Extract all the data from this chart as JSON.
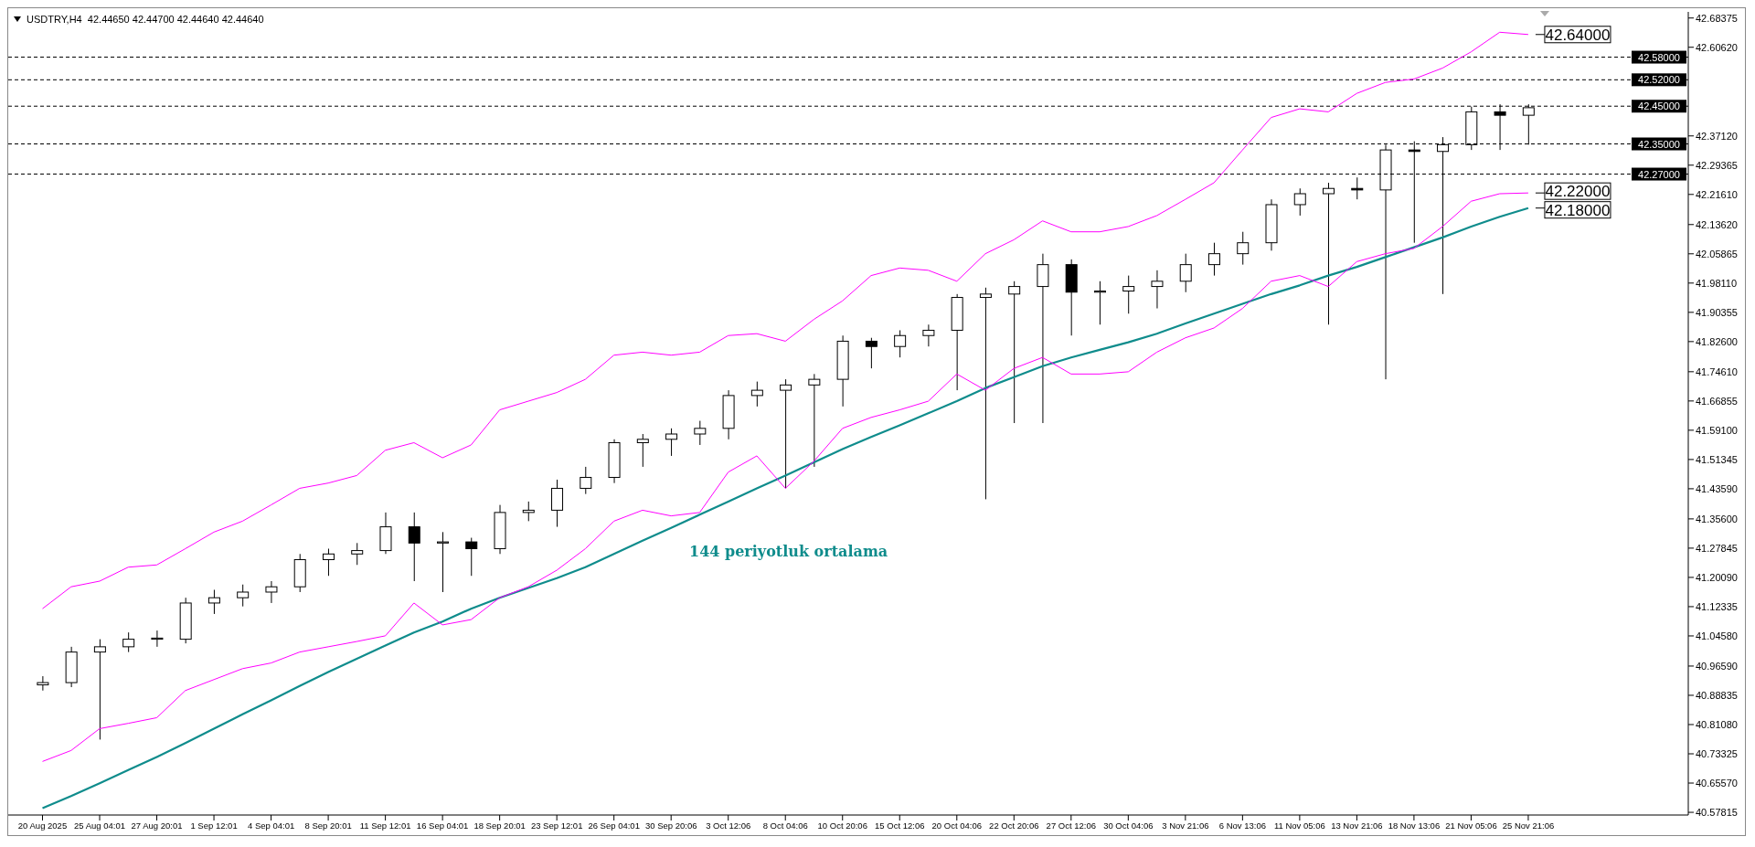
{
  "chart_data": {
    "type": "candlestick",
    "title": "USDTRY,H4  42.44650 42.44700 42.44640 42.44640",
    "categories": [
      "20 Aug 2025",
      null,
      "25 Aug 04:01",
      null,
      "27 Aug 20:01",
      null,
      "1 Sep 12:01",
      null,
      "4 Sep 04:01",
      null,
      "8 Sep 20:01",
      null,
      "11 Sep 12:01",
      null,
      "16 Sep 04:01",
      null,
      "18 Sep 20:01",
      null,
      "23 Sep 12:01",
      null,
      "26 Sep 04:01",
      null,
      "30 Sep 20:06",
      null,
      "3 Oct 12:06",
      null,
      "8 Oct 04:06",
      null,
      "10 Oct 20:06",
      null,
      "15 Oct 12:06",
      null,
      "20 Oct 04:06",
      null,
      "22 Oct 20:06",
      null,
      "27 Oct 12:06",
      null,
      "30 Oct 04:06",
      null,
      "3 Nov 21:06",
      null,
      "6 Nov 13:06",
      null,
      "11 Nov 05:06",
      null,
      "13 Nov 21:06",
      null,
      "18 Nov 13:06",
      null,
      "21 Nov 05:06",
      null,
      "25 Nov 21:06"
    ],
    "ohlc": [
      [
        40.916,
        40.939,
        40.901,
        40.922
      ],
      [
        40.922,
        41.017,
        40.91,
        41.003
      ],
      [
        41.003,
        41.037,
        40.771,
        41.017
      ],
      [
        41.017,
        41.055,
        41.003,
        41.037
      ],
      [
        41.037,
        41.06,
        41.017,
        41.04
      ],
      [
        41.037,
        41.147,
        41.026,
        41.133
      ],
      [
        41.133,
        41.168,
        41.104,
        41.147
      ],
      [
        41.147,
        41.182,
        41.124,
        41.162
      ],
      [
        41.162,
        41.191,
        41.133,
        41.176
      ],
      [
        41.176,
        41.263,
        41.162,
        41.248
      ],
      [
        41.248,
        41.277,
        41.205,
        41.263
      ],
      [
        41.263,
        41.292,
        41.234,
        41.272
      ],
      [
        41.272,
        41.373,
        41.263,
        41.335
      ],
      [
        41.335,
        41.373,
        41.191,
        41.292
      ],
      [
        41.292,
        41.321,
        41.162,
        41.295
      ],
      [
        41.295,
        41.306,
        41.205,
        41.277
      ],
      [
        41.277,
        41.393,
        41.263,
        41.373
      ],
      [
        41.373,
        41.402,
        41.35,
        41.379
      ],
      [
        41.379,
        41.46,
        41.335,
        41.437
      ],
      [
        41.437,
        41.494,
        41.422,
        41.466
      ],
      [
        41.466,
        41.567,
        41.451,
        41.558
      ],
      [
        41.558,
        41.581,
        41.494,
        41.567
      ],
      [
        41.567,
        41.596,
        41.523,
        41.581
      ],
      [
        41.581,
        41.616,
        41.552,
        41.596
      ],
      [
        41.596,
        41.697,
        41.567,
        41.683
      ],
      [
        41.683,
        41.72,
        41.654,
        41.697
      ],
      [
        41.697,
        41.726,
        41.437,
        41.711
      ],
      [
        41.711,
        41.74,
        41.494,
        41.726
      ],
      [
        41.726,
        41.842,
        41.654,
        41.827
      ],
      [
        41.827,
        41.836,
        41.755,
        41.813
      ],
      [
        41.813,
        41.856,
        41.784,
        41.842
      ],
      [
        41.842,
        41.871,
        41.813,
        41.856
      ],
      [
        41.856,
        41.952,
        41.697,
        41.943
      ],
      [
        41.943,
        41.969,
        41.408,
        41.952
      ],
      [
        41.952,
        41.986,
        41.61,
        41.972
      ],
      [
        41.972,
        42.059,
        41.61,
        42.03
      ],
      [
        42.03,
        42.044,
        41.842,
        41.957
      ],
      [
        41.957,
        41.986,
        41.871,
        41.96
      ],
      [
        41.96,
        42.001,
        41.9,
        41.972
      ],
      [
        41.972,
        42.015,
        41.914,
        41.986
      ],
      [
        41.986,
        42.059,
        41.957,
        42.03
      ],
      [
        42.03,
        42.088,
        42.001,
        42.059
      ],
      [
        42.059,
        42.117,
        42.03,
        42.088
      ],
      [
        42.088,
        42.203,
        42.067,
        42.189
      ],
      [
        42.189,
        42.232,
        42.16,
        42.218
      ],
      [
        42.218,
        42.247,
        41.871,
        42.232
      ],
      [
        42.232,
        42.261,
        42.203,
        42.228
      ],
      [
        42.228,
        42.348,
        41.726,
        42.334
      ],
      [
        42.334,
        42.357,
        42.088,
        42.33
      ],
      [
        42.33,
        42.368,
        41.952,
        42.348
      ],
      [
        42.348,
        42.449,
        42.334,
        42.435
      ],
      [
        42.435,
        42.455,
        42.334,
        42.426
      ],
      [
        42.426,
        42.455,
        42.348,
        42.446
      ]
    ],
    "series": [
      {
        "type": "line",
        "color": "#ff00ff",
        "values": [
          41.118,
          41.176,
          41.191,
          41.228,
          41.234,
          41.277,
          41.321,
          41.35,
          41.393,
          41.437,
          41.451,
          41.471,
          41.538,
          41.558,
          41.518,
          41.552,
          41.645,
          41.668,
          41.691,
          41.726,
          41.79,
          41.798,
          41.79,
          41.798,
          41.842,
          41.847,
          41.827,
          41.885,
          41.934,
          42.001,
          42.021,
          42.015,
          41.986,
          42.059,
          42.096,
          42.146,
          42.117,
          42.117,
          42.131,
          42.16,
          42.203,
          42.247,
          42.334,
          42.42,
          42.443,
          42.435,
          42.484,
          42.513,
          42.522,
          42.551,
          42.594,
          42.646,
          42.64
        ]
      },
      {
        "type": "line",
        "color": "#ff00ff",
        "values": [
          40.713,
          40.742,
          40.8,
          40.814,
          40.829,
          40.901,
          40.93,
          40.959,
          40.974,
          41.003,
          41.017,
          41.031,
          41.046,
          41.133,
          41.075,
          41.089,
          41.147,
          41.176,
          41.22,
          41.277,
          41.35,
          41.379,
          41.364,
          41.373,
          41.48,
          41.523,
          41.437,
          41.509,
          41.596,
          41.625,
          41.645,
          41.668,
          41.74,
          41.697,
          41.755,
          41.784,
          41.74,
          41.74,
          41.746,
          41.798,
          41.836,
          41.862,
          41.914,
          41.986,
          42.001,
          41.972,
          42.038,
          42.059,
          42.073,
          42.131,
          42.198,
          42.218,
          42.22
        ]
      },
      {
        "type": "line",
        "color": "#0f8c8c",
        "values": [
          40.589,
          40.621,
          40.655,
          40.69,
          40.725,
          40.762,
          40.8,
          40.838,
          40.875,
          40.913,
          40.95,
          40.985,
          41.02,
          41.055,
          41.084,
          41.118,
          41.147,
          41.173,
          41.199,
          41.228,
          41.263,
          41.298,
          41.332,
          41.367,
          41.402,
          41.437,
          41.471,
          41.506,
          41.541,
          41.573,
          41.604,
          41.636,
          41.668,
          41.703,
          41.732,
          41.761,
          41.784,
          41.804,
          41.824,
          41.847,
          41.874,
          41.9,
          41.926,
          41.952,
          41.975,
          42.001,
          42.024,
          42.05,
          42.076,
          42.102,
          42.131,
          42.157,
          42.18
        ]
      }
    ],
    "ylim": [
      40.571,
      42.7
    ],
    "yticks": [
      42.68375,
      {
        "value": 42.6062,
        "label": "42.60620"
      },
      {
        "value": 42.3712,
        "label": "42.37120"
      },
      42.29365,
      {
        "value": 42.2161,
        "label": "42.21610"
      },
      {
        "value": 42.1362,
        "label": "42.13620"
      },
      42.05865,
      {
        "value": 41.9811,
        "label": "41.98110"
      },
      41.90355,
      {
        "value": 41.826,
        "label": "41.82600"
      },
      {
        "value": 41.7461,
        "label": "41.74610"
      },
      41.66855,
      {
        "value": 41.591,
        "label": "41.59100"
      },
      41.51345,
      {
        "value": 41.4359,
        "label": "41.43590"
      },
      {
        "value": 41.356,
        "label": "41.35600"
      },
      41.27845,
      {
        "value": 41.2009,
        "label": "41.20090"
      },
      41.12335,
      {
        "value": 41.0458,
        "label": "41.04580"
      },
      {
        "value": 40.9659,
        "label": "40.96590"
      },
      40.88835,
      {
        "value": 40.8108,
        "label": "40.81080"
      },
      40.73325,
      {
        "value": 40.6557,
        "label": "40.65570"
      },
      40.57815
    ],
    "ref_lines": [
      {
        "axis": "y",
        "value": 42.58,
        "label": "42.58000",
        "line_style": "dashed"
      },
      {
        "axis": "y",
        "value": 42.52,
        "label": "42.52000",
        "line_style": "dashed"
      },
      {
        "axis": "y",
        "value": 42.45,
        "label": "42.45000",
        "line_style": "dashed"
      },
      {
        "axis": "y",
        "value": 42.35,
        "label": "42.35000",
        "line_style": "dashed"
      },
      {
        "axis": "y",
        "value": 42.27,
        "label": "42.27000",
        "line_style": "dashed"
      }
    ],
    "annotations": [
      "144 periyotluk ortalama",
      "42.64000",
      "42.22000",
      "42.18000"
    ]
  }
}
